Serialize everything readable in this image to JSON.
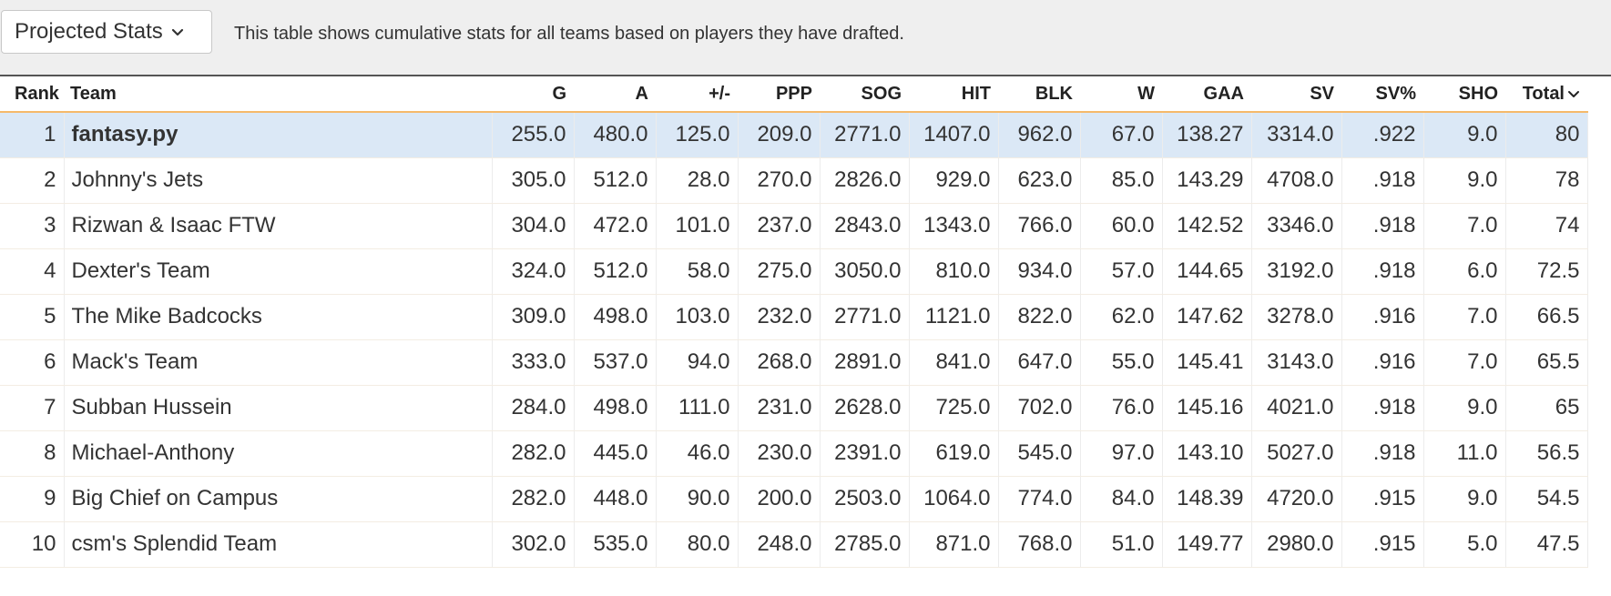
{
  "controls": {
    "stats_dropdown_value": "Projected Stats",
    "description": "This table shows cumulative stats for all teams based on players they have drafted."
  },
  "table": {
    "headers": [
      "Rank",
      "Team",
      "G",
      "A",
      "+/-",
      "PPP",
      "SOG",
      "HIT",
      "BLK",
      "W",
      "GAA",
      "SV",
      "SV%",
      "SHO",
      "Total"
    ],
    "sorted_column": "Total",
    "rows": [
      {
        "rank": "1",
        "team": "fantasy.py",
        "cells": [
          "255.0",
          "480.0",
          "125.0",
          "209.0",
          "2771.0",
          "1407.0",
          "962.0",
          "67.0",
          "138.27",
          "3314.0",
          ".922",
          "9.0",
          "80"
        ],
        "highlighted": true
      },
      {
        "rank": "2",
        "team": "Johnny's Jets",
        "cells": [
          "305.0",
          "512.0",
          "28.0",
          "270.0",
          "2826.0",
          "929.0",
          "623.0",
          "85.0",
          "143.29",
          "4708.0",
          ".918",
          "9.0",
          "78"
        ]
      },
      {
        "rank": "3",
        "team": "Rizwan & Isaac FTW",
        "cells": [
          "304.0",
          "472.0",
          "101.0",
          "237.0",
          "2843.0",
          "1343.0",
          "766.0",
          "60.0",
          "142.52",
          "3346.0",
          ".918",
          "7.0",
          "74"
        ]
      },
      {
        "rank": "4",
        "team": "Dexter's Team",
        "cells": [
          "324.0",
          "512.0",
          "58.0",
          "275.0",
          "3050.0",
          "810.0",
          "934.0",
          "57.0",
          "144.65",
          "3192.0",
          ".918",
          "6.0",
          "72.5"
        ]
      },
      {
        "rank": "5",
        "team": "The Mike Badcocks",
        "cells": [
          "309.0",
          "498.0",
          "103.0",
          "232.0",
          "2771.0",
          "1121.0",
          "822.0",
          "62.0",
          "147.62",
          "3278.0",
          ".916",
          "7.0",
          "66.5"
        ]
      },
      {
        "rank": "6",
        "team": "Mack's Team",
        "cells": [
          "333.0",
          "537.0",
          "94.0",
          "268.0",
          "2891.0",
          "841.0",
          "647.0",
          "55.0",
          "145.41",
          "3143.0",
          ".916",
          "7.0",
          "65.5"
        ]
      },
      {
        "rank": "7",
        "team": "Subban Hussein",
        "cells": [
          "284.0",
          "498.0",
          "111.0",
          "231.0",
          "2628.0",
          "725.0",
          "702.0",
          "76.0",
          "145.16",
          "4021.0",
          ".918",
          "9.0",
          "65"
        ]
      },
      {
        "rank": "8",
        "team": "Michael-Anthony",
        "cells": [
          "282.0",
          "445.0",
          "46.0",
          "230.0",
          "2391.0",
          "619.0",
          "545.0",
          "97.0",
          "143.10",
          "5027.0",
          ".918",
          "11.0",
          "56.5"
        ]
      },
      {
        "rank": "9",
        "team": "Big Chief on Campus",
        "cells": [
          "282.0",
          "448.0",
          "90.0",
          "200.0",
          "2503.0",
          "1064.0",
          "774.0",
          "84.0",
          "148.39",
          "4720.0",
          ".915",
          "9.0",
          "54.5"
        ]
      },
      {
        "rank": "10",
        "team": "csm's Splendid Team",
        "cells": [
          "302.0",
          "535.0",
          "80.0",
          "248.0",
          "2785.0",
          "871.0",
          "768.0",
          "51.0",
          "149.77",
          "2980.0",
          ".915",
          "5.0",
          "47.5"
        ]
      }
    ]
  },
  "icons": {
    "dropdown": "chevron-down-icon",
    "sort": "chevron-down-icon"
  },
  "colors": {
    "highlight_row": "#dbe8f6",
    "header_underline": "#f5b96a",
    "topbar_bg": "#efefef"
  }
}
